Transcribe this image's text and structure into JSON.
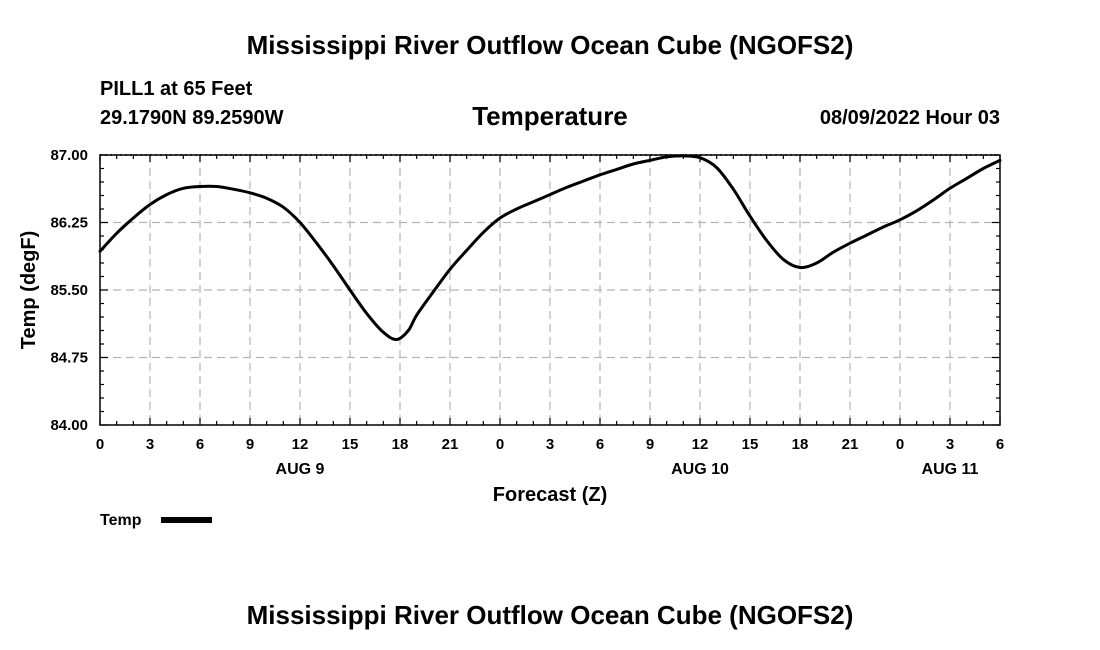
{
  "page": {
    "title_top": "Mississippi River Outflow Ocean Cube (NGOFS2)",
    "title_bottom": "Mississippi River Outflow Ocean Cube (NGOFS2)"
  },
  "header": {
    "station": "PILL1 at 65 Feet",
    "coords": "29.1790N  89.2590W",
    "datetime": "08/09/2022 Hour 03"
  },
  "legend": {
    "label": "Temp"
  },
  "colors": {
    "line": "#000000",
    "grid": "#b4b4b4"
  },
  "chart_data": {
    "type": "line",
    "title": "Temperature",
    "xlabel": "Forecast (Z)",
    "ylabel": "Temp (degF)",
    "xlim": [
      0,
      54
    ],
    "ylim": [
      84.0,
      87.0
    ],
    "yticks": [
      84.0,
      84.75,
      85.5,
      86.25,
      87.0
    ],
    "ytick_labels": [
      "84.00",
      "84.75",
      "85.50",
      "86.25",
      "87.00"
    ],
    "xticks": [
      0,
      3,
      6,
      9,
      12,
      15,
      18,
      21,
      24,
      27,
      30,
      33,
      36,
      39,
      42,
      45,
      48,
      51,
      54
    ],
    "xtick_labels": [
      "0",
      "3",
      "6",
      "9",
      "12",
      "15",
      "18",
      "21",
      "0",
      "3",
      "6",
      "9",
      "12",
      "15",
      "18",
      "21",
      "0",
      "3",
      "6"
    ],
    "date_labels": [
      {
        "label": "AUG 9",
        "x": 12
      },
      {
        "label": "AUG 10",
        "x": 36
      },
      {
        "label": "AUG 11",
        "x": 51
      }
    ],
    "grid": true,
    "legend_position": "bottom-left",
    "series": [
      {
        "name": "Temp",
        "x": [
          0,
          1,
          2,
          3,
          4,
          5,
          6,
          7,
          8,
          9,
          10,
          11,
          12,
          13,
          14,
          15,
          16,
          17,
          17.8,
          18.5,
          19,
          20,
          21,
          22,
          23,
          24,
          25,
          26,
          27,
          28,
          29,
          30,
          31,
          32,
          33,
          34,
          35,
          36,
          37,
          38,
          39,
          40,
          41,
          42,
          43,
          44,
          45,
          46,
          47,
          48,
          49,
          50,
          51,
          52,
          53,
          54
        ],
        "values": [
          85.93,
          86.13,
          86.3,
          86.45,
          86.56,
          86.63,
          86.65,
          86.65,
          86.62,
          86.58,
          86.52,
          86.42,
          86.25,
          86.02,
          85.77,
          85.5,
          85.24,
          85.03,
          84.95,
          85.05,
          85.22,
          85.48,
          85.73,
          85.94,
          86.14,
          86.3,
          86.4,
          86.48,
          86.56,
          86.64,
          86.71,
          86.78,
          86.84,
          86.9,
          86.94,
          86.98,
          86.99,
          86.97,
          86.86,
          86.62,
          86.32,
          86.05,
          85.84,
          85.75,
          85.8,
          85.92,
          86.02,
          86.11,
          86.2,
          86.28,
          86.38,
          86.5,
          86.63,
          86.74,
          86.85,
          86.94
        ]
      }
    ]
  }
}
